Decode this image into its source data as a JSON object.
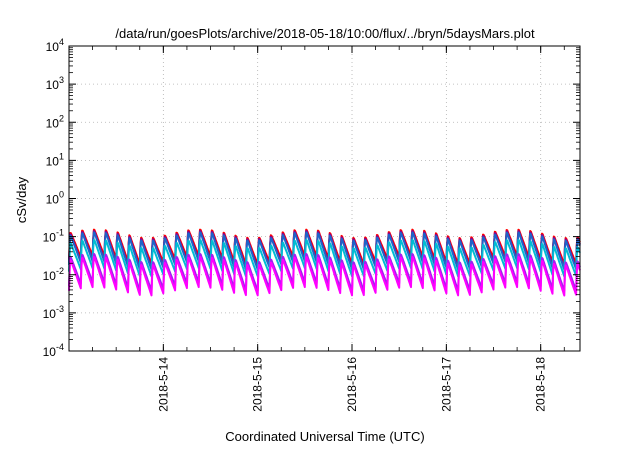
{
  "chart_data": {
    "type": "line",
    "title": "/data/run/goesPlots/archive/2018-05-18/10:00/flux/../bryn/5daysMars.plot",
    "xlabel": "Coordinated Universal Time (UTC)",
    "ylabel": "cSv/day",
    "x_range": [
      "2018-05-13T00:00",
      "2018-05-18T10:00"
    ],
    "x_ticks": [
      "2018-5-14",
      "2018-5-15",
      "2018-5-16",
      "2018-5-17",
      "2018-5-18"
    ],
    "x_tick_values": [
      "2018-05-14T00:00",
      "2018-05-15T00:00",
      "2018-05-16T00:00",
      "2018-05-17T00:00",
      "2018-05-18T00:00"
    ],
    "y_scale": "log",
    "ylim": [
      0.0001,
      10000
    ],
    "y_ticks": [
      {
        "base": "10",
        "exp": "-4"
      },
      {
        "base": "10",
        "exp": "-3"
      },
      {
        "base": "10",
        "exp": "-2"
      },
      {
        "base": "10",
        "exp": "-1"
      },
      {
        "base": "10",
        "exp": "0"
      },
      {
        "base": "10",
        "exp": "1"
      },
      {
        "base": "10",
        "exp": "2"
      },
      {
        "base": "10",
        "exp": "3"
      },
      {
        "base": "10",
        "exp": "4"
      }
    ],
    "y_tick_values": [
      0.0001,
      0.001,
      0.01,
      0.1,
      1,
      10,
      100,
      1000,
      10000
    ],
    "grid": true,
    "legend": "none",
    "series": [
      {
        "color": "#ff0000",
        "peak": 0.13,
        "trough": 0.025
      },
      {
        "color": "#8b008b",
        "peak": 0.12,
        "trough": 0.02
      },
      {
        "color": "#1e64c8",
        "peak": 0.11,
        "trough": 0.018
      },
      {
        "color": "#00bcd4",
        "peak": 0.07,
        "trough": 0.012
      },
      {
        "color": "#a020f0",
        "peak": 0.03,
        "trough": 0.005
      },
      {
        "color": "#ff00ff",
        "peak": 0.025,
        "trough": 0.0038
      }
    ],
    "period_hours": 3
  }
}
